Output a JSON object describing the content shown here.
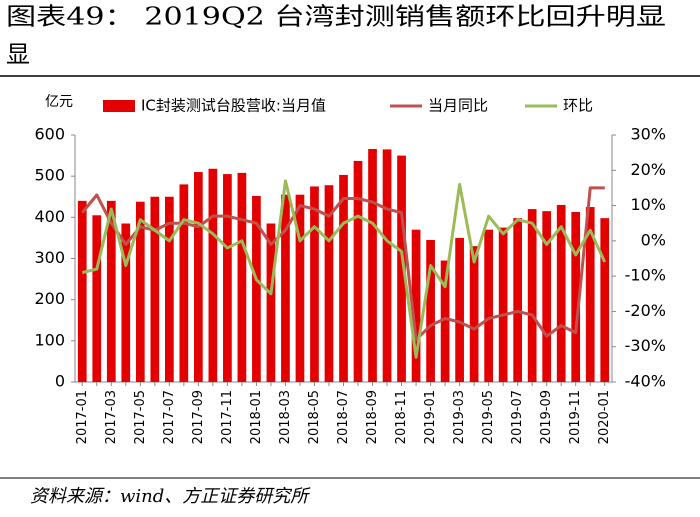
{
  "chart_data": {
    "type": "bar",
    "title": "图表49：        2019Q2 台湾封测销售额环比回升明显",
    "source": "资料来源：wind、方正证券研究所",
    "y_unit": "亿元",
    "categories": [
      "2017-01",
      null,
      "2017-03",
      null,
      "2017-05",
      null,
      "2017-07",
      null,
      "2017-09",
      null,
      "2017-11",
      null,
      "2018-01",
      null,
      "2018-03",
      null,
      "2018-05",
      null,
      "2018-07",
      null,
      "2018-09",
      null,
      "2018-11",
      null,
      "2019-01",
      null,
      "2019-03",
      null,
      "2019-05",
      null,
      "2019-07",
      null,
      "2019-09",
      null,
      "2019-11",
      null,
      "2020-01"
    ],
    "series": [
      {
        "name": "IC封装测试台股营收:当月值",
        "type": "bar",
        "axis": "y",
        "color": "#e30000",
        "values": [
          440,
          405,
          440,
          385,
          438,
          450,
          450,
          480,
          510,
          518,
          505,
          508,
          452,
          385,
          455,
          455,
          475,
          478,
          503,
          537,
          566,
          565,
          550,
          370,
          345,
          295,
          350,
          330,
          370,
          375,
          398,
          420,
          415,
          430,
          413,
          425,
          398
        ]
      },
      {
        "name": "当月同比",
        "type": "line",
        "axis": "y2",
        "color": "#c0504d",
        "values": [
          8,
          13,
          5,
          -1,
          4,
          3,
          5,
          5,
          4,
          7,
          7,
          6,
          5,
          -1,
          3,
          10,
          9,
          7,
          12,
          12,
          11,
          9,
          8,
          -28,
          -24,
          -22,
          -23,
          -25,
          -22,
          -21,
          -20,
          -21,
          -27,
          -24,
          -26,
          15,
          15
        ]
      },
      {
        "name": "环比",
        "type": "line",
        "axis": "y2",
        "color": "#9bbb59",
        "values": [
          -9,
          -8,
          9,
          -7,
          6,
          3,
          0,
          6,
          5,
          2,
          -2,
          0,
          -11,
          -15,
          17,
          0,
          4,
          0,
          5,
          7,
          5,
          0,
          -3,
          -33,
          -7,
          -13,
          16,
          -6,
          7,
          2,
          6,
          5,
          -1,
          4,
          -4,
          3,
          -6
        ]
      }
    ],
    "ylim": [
      0,
      600
    ],
    "yticks": [
      0,
      100,
      200,
      300,
      400,
      500,
      600
    ],
    "y2lim": [
      -40,
      30
    ],
    "y2ticks": [
      {
        "value": -40,
        "label": "-40%"
      },
      {
        "value": -30,
        "label": "-30%"
      },
      {
        "value": -20,
        "label": "-20%"
      },
      {
        "value": -10,
        "label": "-10%"
      },
      {
        "value": 0,
        "label": "0%"
      },
      {
        "value": 10,
        "label": "10%"
      },
      {
        "value": 20,
        "label": "20%"
      },
      {
        "value": 30,
        "label": "30%"
      }
    ],
    "legend": "top"
  }
}
